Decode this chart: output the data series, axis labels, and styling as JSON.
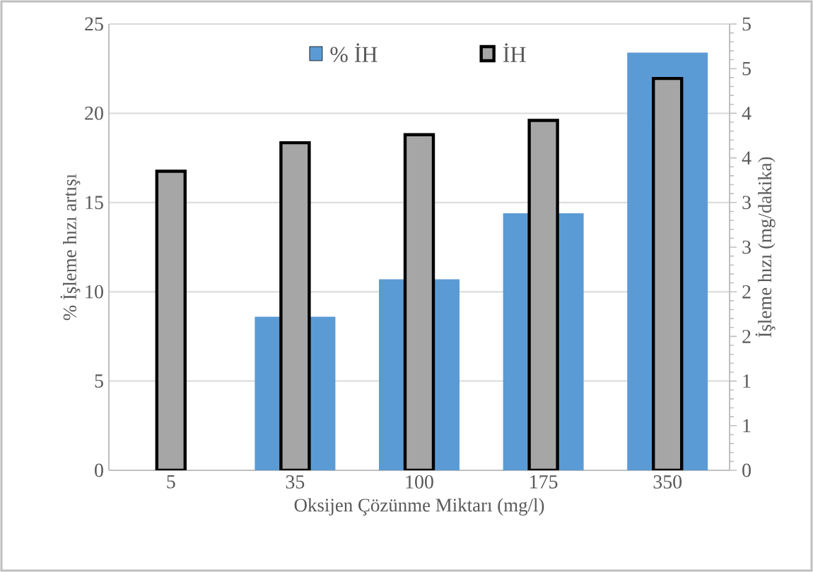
{
  "chart_data": {
    "type": "bar",
    "xlabel": "Oksijen Çözünme Miktarı (mg/l)",
    "ylabel": "% İşleme hızı artışı",
    "y2label": "İşleme hızı (mg/dakika)",
    "categories": [
      "5",
      "35",
      "100",
      "175",
      "350"
    ],
    "series": [
      {
        "name": "% İH",
        "color": "#5b9bd5",
        "values": [
          0,
          8.6,
          10.7,
          14.4,
          23.4
        ]
      },
      {
        "name": "İH",
        "color": "#a6a6a6",
        "axis": "y2",
        "values": [
          3.35,
          3.67,
          3.76,
          3.92,
          4.39
        ]
      }
    ],
    "ylim": [
      0,
      25
    ],
    "yticks": [
      0,
      5,
      10,
      15,
      20,
      25
    ],
    "y2lim": [
      0,
      5
    ],
    "y2ticks": [
      0,
      {
        "value": 0.5,
        "label": "1"
      },
      1,
      {
        "value": 1.5,
        "label": "2"
      },
      2,
      {
        "value": 2.5,
        "label": "3"
      },
      3,
      {
        "value": 3.5,
        "label": "4"
      },
      4,
      {
        "value": 4.5,
        "label": "5"
      },
      5
    ],
    "grid": "y",
    "legend": "top"
  }
}
